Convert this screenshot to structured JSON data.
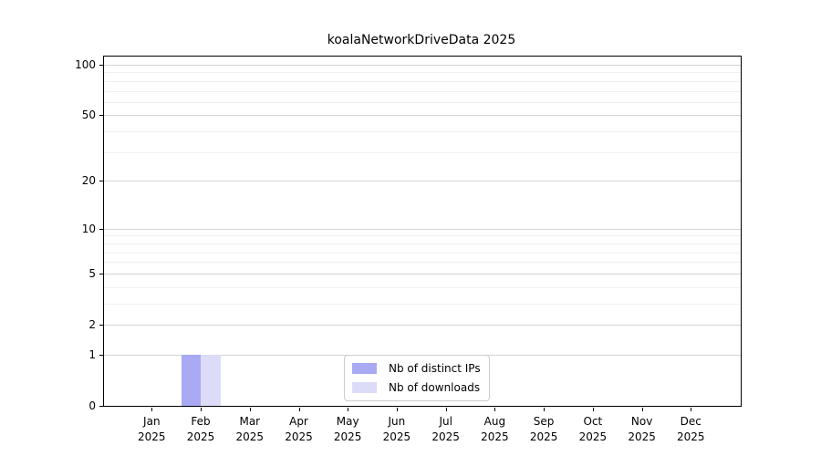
{
  "chart_data": {
    "type": "bar",
    "title": "koalaNetworkDriveData 2025",
    "categories": [
      "Jan 2025",
      "Feb 2025",
      "Mar 2025",
      "Apr 2025",
      "May 2025",
      "Jun 2025",
      "Jul 2025",
      "Aug 2025",
      "Sep 2025",
      "Oct 2025",
      "Nov 2025",
      "Dec 2025"
    ],
    "series": [
      {
        "name": "Nb of distinct IPs",
        "color": "#a9a9f4",
        "values": [
          0,
          1,
          0,
          0,
          0,
          0,
          0,
          0,
          0,
          0,
          0,
          0
        ]
      },
      {
        "name": "Nb of downloads",
        "color": "#dcdcf9",
        "values": [
          0,
          1,
          0,
          0,
          0,
          0,
          0,
          0,
          0,
          0,
          0,
          0
        ]
      }
    ],
    "xlabel": "",
    "ylabel": "",
    "yscale": "log1p",
    "ylim": [
      0,
      111.8
    ],
    "yticks": [
      0,
      1,
      2,
      5,
      10,
      20,
      50,
      100
    ],
    "minor_yticks": [
      3,
      4,
      6,
      7,
      8,
      9,
      30,
      40,
      60,
      70,
      80,
      90
    ],
    "grid": "horizontal, major and minor, majors #d4d4d4, minors #f0f0f0",
    "legend_position": "lower center"
  },
  "colors": {
    "spine": "#000000",
    "background": "#ffffff",
    "text": "#000000",
    "major_grid": "#d4d4d4",
    "minor_grid": "#f0f0f0",
    "legend_border": "#cccccc",
    "bar_distinct_ips": "#a9a9f4",
    "bar_downloads": "#dcdcf9"
  }
}
